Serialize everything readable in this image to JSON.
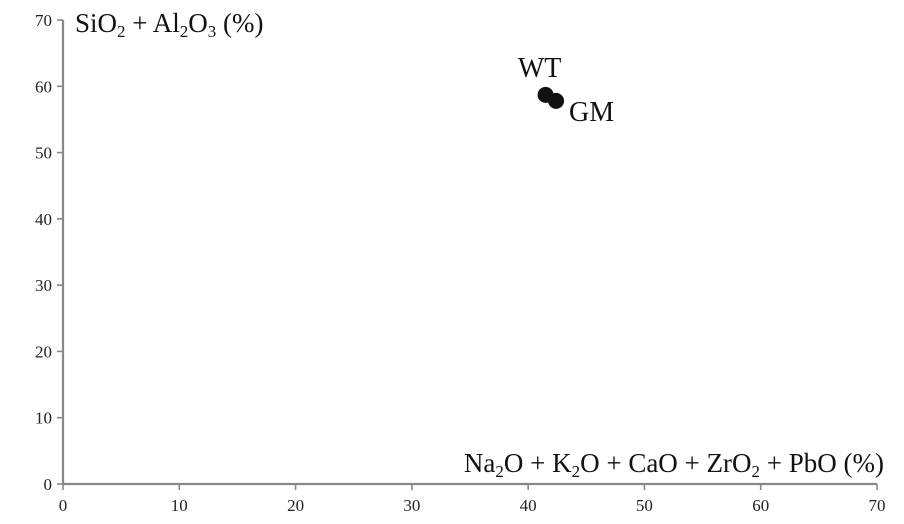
{
  "chart_data": {
    "type": "scatter",
    "xlim": [
      0,
      70
    ],
    "ylim": [
      0,
      70
    ],
    "xticks": [
      0,
      10,
      20,
      30,
      40,
      50,
      60,
      70
    ],
    "yticks": [
      0,
      10,
      20,
      30,
      40,
      50,
      60,
      70
    ],
    "xlabel": {
      "parts": [
        "Na",
        "2",
        "O + K",
        "2",
        "O + CaO + ZrO",
        "2",
        " + PbO (%)"
      ],
      "sub": [
        false,
        true,
        false,
        true,
        false,
        true,
        false
      ]
    },
    "ylabel": {
      "parts": [
        "SiO",
        "2",
        " + Al",
        "2",
        "O",
        "3",
        " (%)"
      ],
      "sub": [
        false,
        true,
        false,
        true,
        false,
        true,
        false
      ]
    },
    "points": [
      {
        "label": "WT",
        "x": 41.5,
        "y": 58.7
      },
      {
        "label": "GM",
        "x": 42.4,
        "y": 57.8
      }
    ],
    "grid": false,
    "axis_color": "#888888",
    "marker_color": "#111111"
  }
}
